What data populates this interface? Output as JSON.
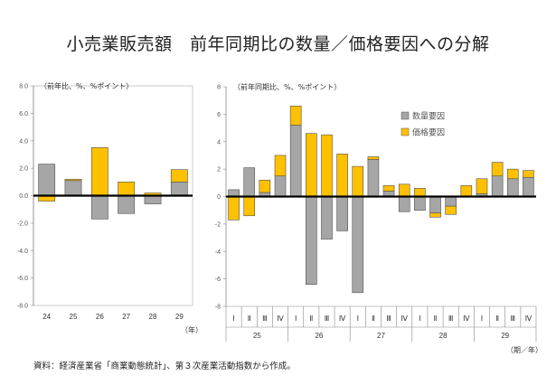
{
  "title": "小売業販売額　前年同期比の数量／価格要因への分解",
  "source": "資料：経済産業省「商業動態統計」、第３次産業活動指数から作成。",
  "colors": {
    "quantity": "#a6a6a6",
    "price": "#ffc000",
    "edge": "#505050"
  },
  "chart_data": [
    {
      "type": "bar",
      "stacked": true,
      "unit_label": "（前年比、%、%ポイント）",
      "xunit": "（年）",
      "ylim": [
        -8.0,
        8.0
      ],
      "yticks": [
        "8.0",
        "6.0",
        "4.0",
        "2.0",
        "0.0",
        "-2.0",
        "-4.0",
        "-6.0",
        "-8.0"
      ],
      "categories": [
        "24",
        "25",
        "26",
        "27",
        "28",
        "29"
      ],
      "series": [
        {
          "name": "数量要因",
          "values": [
            2.3,
            1.1,
            -1.7,
            -1.3,
            -0.6,
            1.0
          ]
        },
        {
          "name": "価格要因",
          "values": [
            -0.4,
            0.1,
            3.5,
            1.0,
            0.2,
            0.9
          ]
        }
      ]
    },
    {
      "type": "bar",
      "stacked": true,
      "unit_label": "（前年同期比、%、%ポイント）",
      "xunit": "（期／年）",
      "ylim": [
        -8,
        8
      ],
      "yticks": [
        "8",
        "6",
        "4",
        "2",
        "0",
        "-2",
        "-4",
        "-6",
        "-8"
      ],
      "categories": [
        "Ⅰ",
        "Ⅱ",
        "Ⅲ",
        "Ⅳ",
        "Ⅰ",
        "Ⅱ",
        "Ⅲ",
        "Ⅳ",
        "Ⅰ",
        "Ⅱ",
        "Ⅲ",
        "Ⅳ",
        "Ⅰ",
        "Ⅱ",
        "Ⅲ",
        "Ⅳ",
        "Ⅰ",
        "Ⅱ",
        "Ⅲ",
        "Ⅳ"
      ],
      "year_groups": [
        "25",
        "26",
        "27",
        "28",
        "29"
      ],
      "legend": [
        "数量要因",
        "価格要因"
      ],
      "series": [
        {
          "name": "数量要因",
          "values": [
            0.5,
            2.1,
            0.3,
            1.5,
            5.2,
            -6.4,
            -3.1,
            -2.5,
            -7.0,
            2.7,
            0.4,
            -1.1,
            -1.0,
            -1.2,
            -0.7,
            0.0,
            0.2,
            1.5,
            1.3,
            1.4
          ]
        },
        {
          "name": "価格要因",
          "values": [
            -1.7,
            -1.4,
            0.9,
            1.5,
            1.4,
            4.6,
            4.5,
            3.1,
            2.2,
            0.2,
            0.4,
            0.9,
            0.6,
            -0.3,
            -0.6,
            0.8,
            1.1,
            1.0,
            0.7,
            0.5
          ]
        }
      ]
    }
  ]
}
